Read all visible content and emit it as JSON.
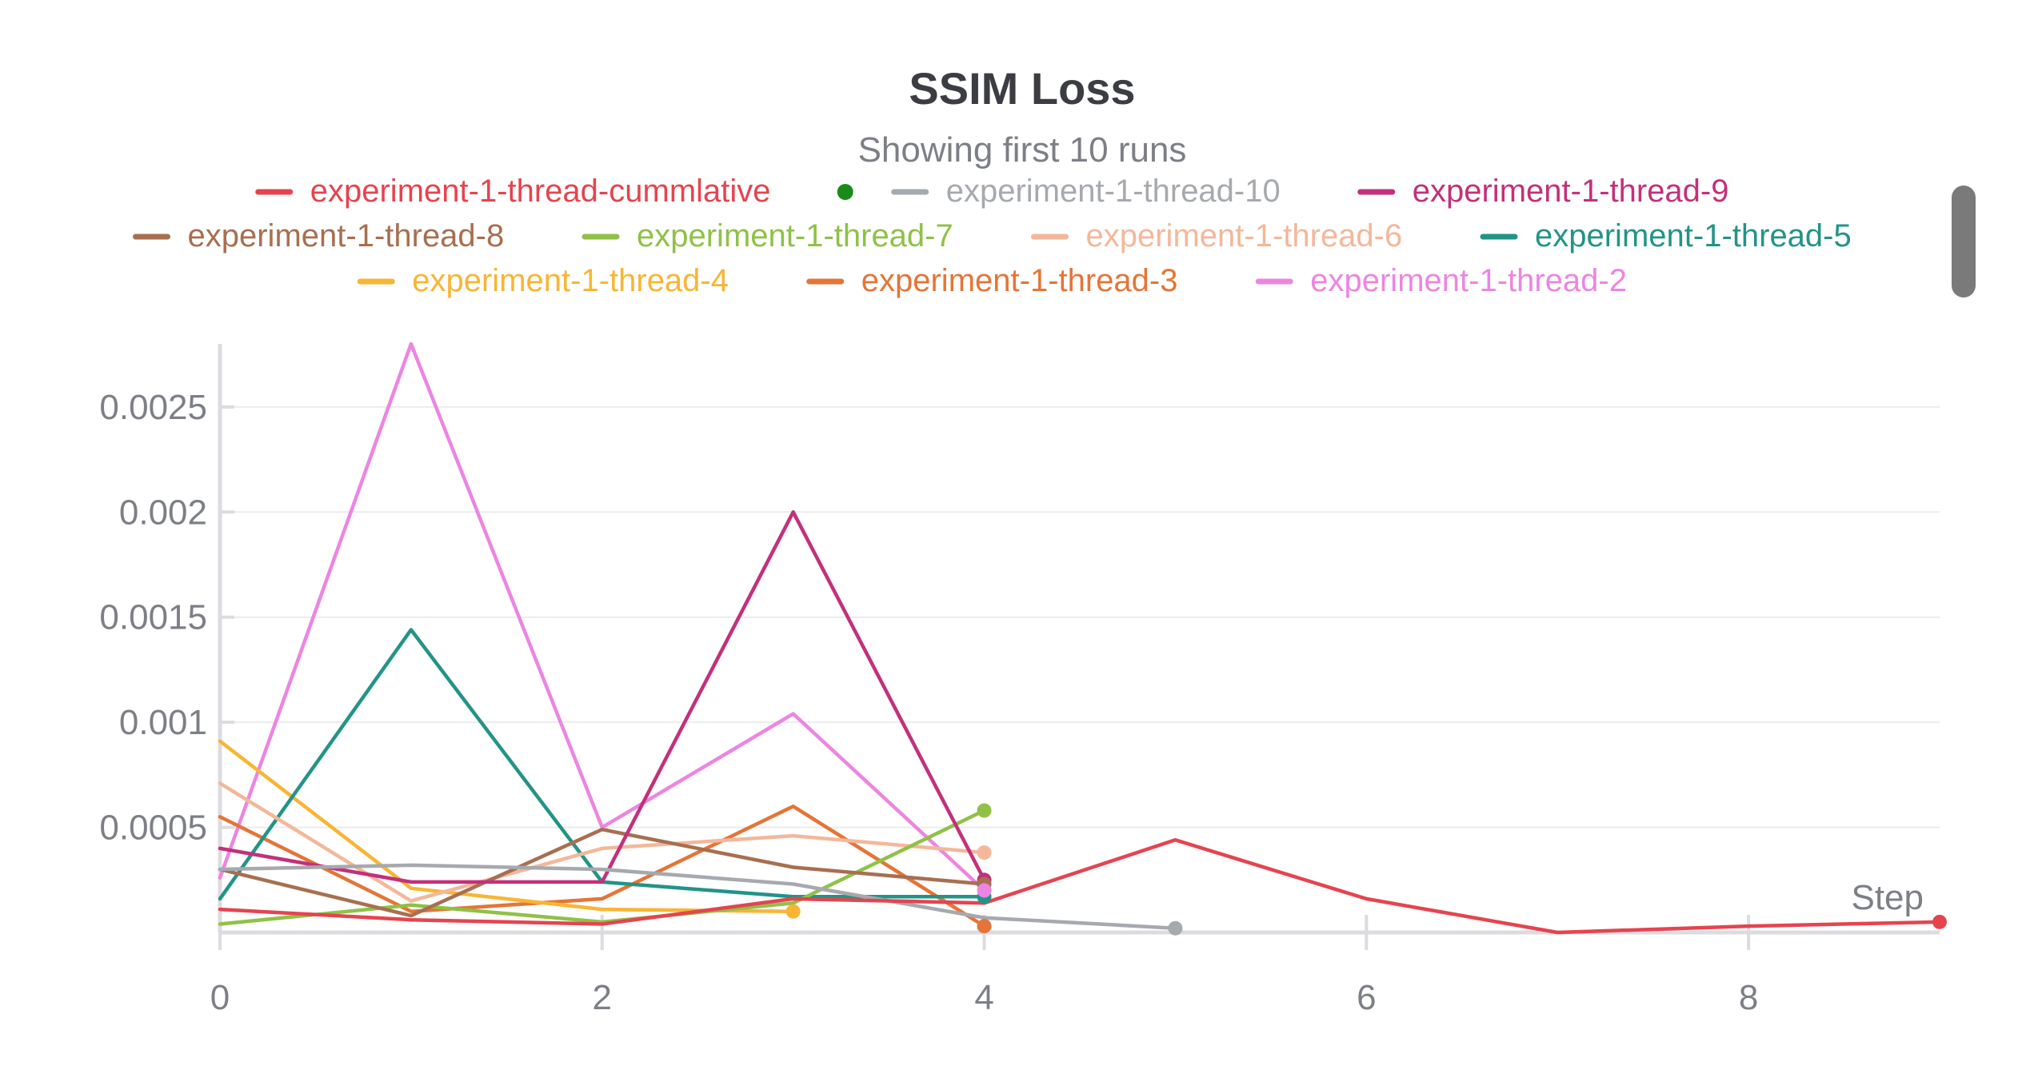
{
  "chart_data": {
    "type": "line",
    "title": "SSIM Loss",
    "subtitle": "Showing first 10 runs",
    "xlabel": "Step",
    "ylabel": "",
    "xlim": [
      0,
      9
    ],
    "ylim": [
      0,
      0.0028
    ],
    "x_ticks": [
      0,
      2,
      4,
      6,
      8
    ],
    "y_ticks": [
      0.0005,
      0.001,
      0.0015,
      0.002,
      0.0025
    ],
    "y_tick_labels": [
      "0.0005",
      "0.001",
      "0.0015",
      "0.002",
      "0.0025"
    ],
    "grid": true,
    "legend_position": "top",
    "series": [
      {
        "name": "experiment-1-thread-cummlative",
        "color": "#e5444f",
        "x": [
          0,
          1,
          2,
          3,
          4,
          5,
          6,
          7,
          8,
          9
        ],
        "y": [
          0.00011,
          6e-05,
          4e-05,
          0.00016,
          0.00014,
          0.00044,
          0.00016,
          0.0,
          3e-05,
          5e-05
        ],
        "status_dot": "#1a8a1a"
      },
      {
        "name": "experiment-1-thread-10",
        "color": "#a6a9ad",
        "x": [
          0,
          1,
          2,
          3,
          4,
          5
        ],
        "y": [
          0.0003,
          0.00032,
          0.0003,
          0.00023,
          7e-05,
          2e-05
        ]
      },
      {
        "name": "experiment-1-thread-9",
        "color": "#c3307b",
        "x": [
          0,
          1,
          2,
          3,
          4
        ],
        "y": [
          0.0004,
          0.00024,
          0.00024,
          0.002,
          0.00025
        ]
      },
      {
        "name": "experiment-1-thread-8",
        "color": "#a76f50",
        "x": [
          0,
          1,
          2,
          3,
          4
        ],
        "y": [
          0.0003,
          8e-05,
          0.00049,
          0.00031,
          0.00023
        ]
      },
      {
        "name": "experiment-1-thread-7",
        "color": "#8fc147",
        "x": [
          0,
          1,
          2,
          3,
          4
        ],
        "y": [
          4e-05,
          0.00013,
          5e-05,
          0.00014,
          0.00058
        ]
      },
      {
        "name": "experiment-1-thread-6",
        "color": "#f4b79a",
        "x": [
          0,
          1,
          2,
          3,
          4
        ],
        "y": [
          0.00071,
          0.00015,
          0.0004,
          0.00046,
          0.00038
        ]
      },
      {
        "name": "experiment-1-thread-5",
        "color": "#229487",
        "x": [
          0,
          1,
          2,
          3,
          4
        ],
        "y": [
          0.00016,
          0.00144,
          0.00024,
          0.00017,
          0.00017
        ]
      },
      {
        "name": "experiment-1-thread-4",
        "color": "#f8b534",
        "x": [
          0,
          1,
          2,
          3
        ],
        "y": [
          0.00091,
          0.00021,
          0.00011,
          0.0001
        ]
      },
      {
        "name": "experiment-1-thread-3",
        "color": "#e47537",
        "x": [
          0,
          1,
          2,
          3,
          4
        ],
        "y": [
          0.00055,
          0.0001,
          0.00016,
          0.0006,
          3e-05
        ]
      },
      {
        "name": "experiment-1-thread-2",
        "color": "#ec85e1",
        "x": [
          0,
          1,
          2,
          3,
          4
        ],
        "y": [
          0.00026,
          0.0028,
          0.0005,
          0.00104,
          0.0002
        ]
      }
    ]
  }
}
